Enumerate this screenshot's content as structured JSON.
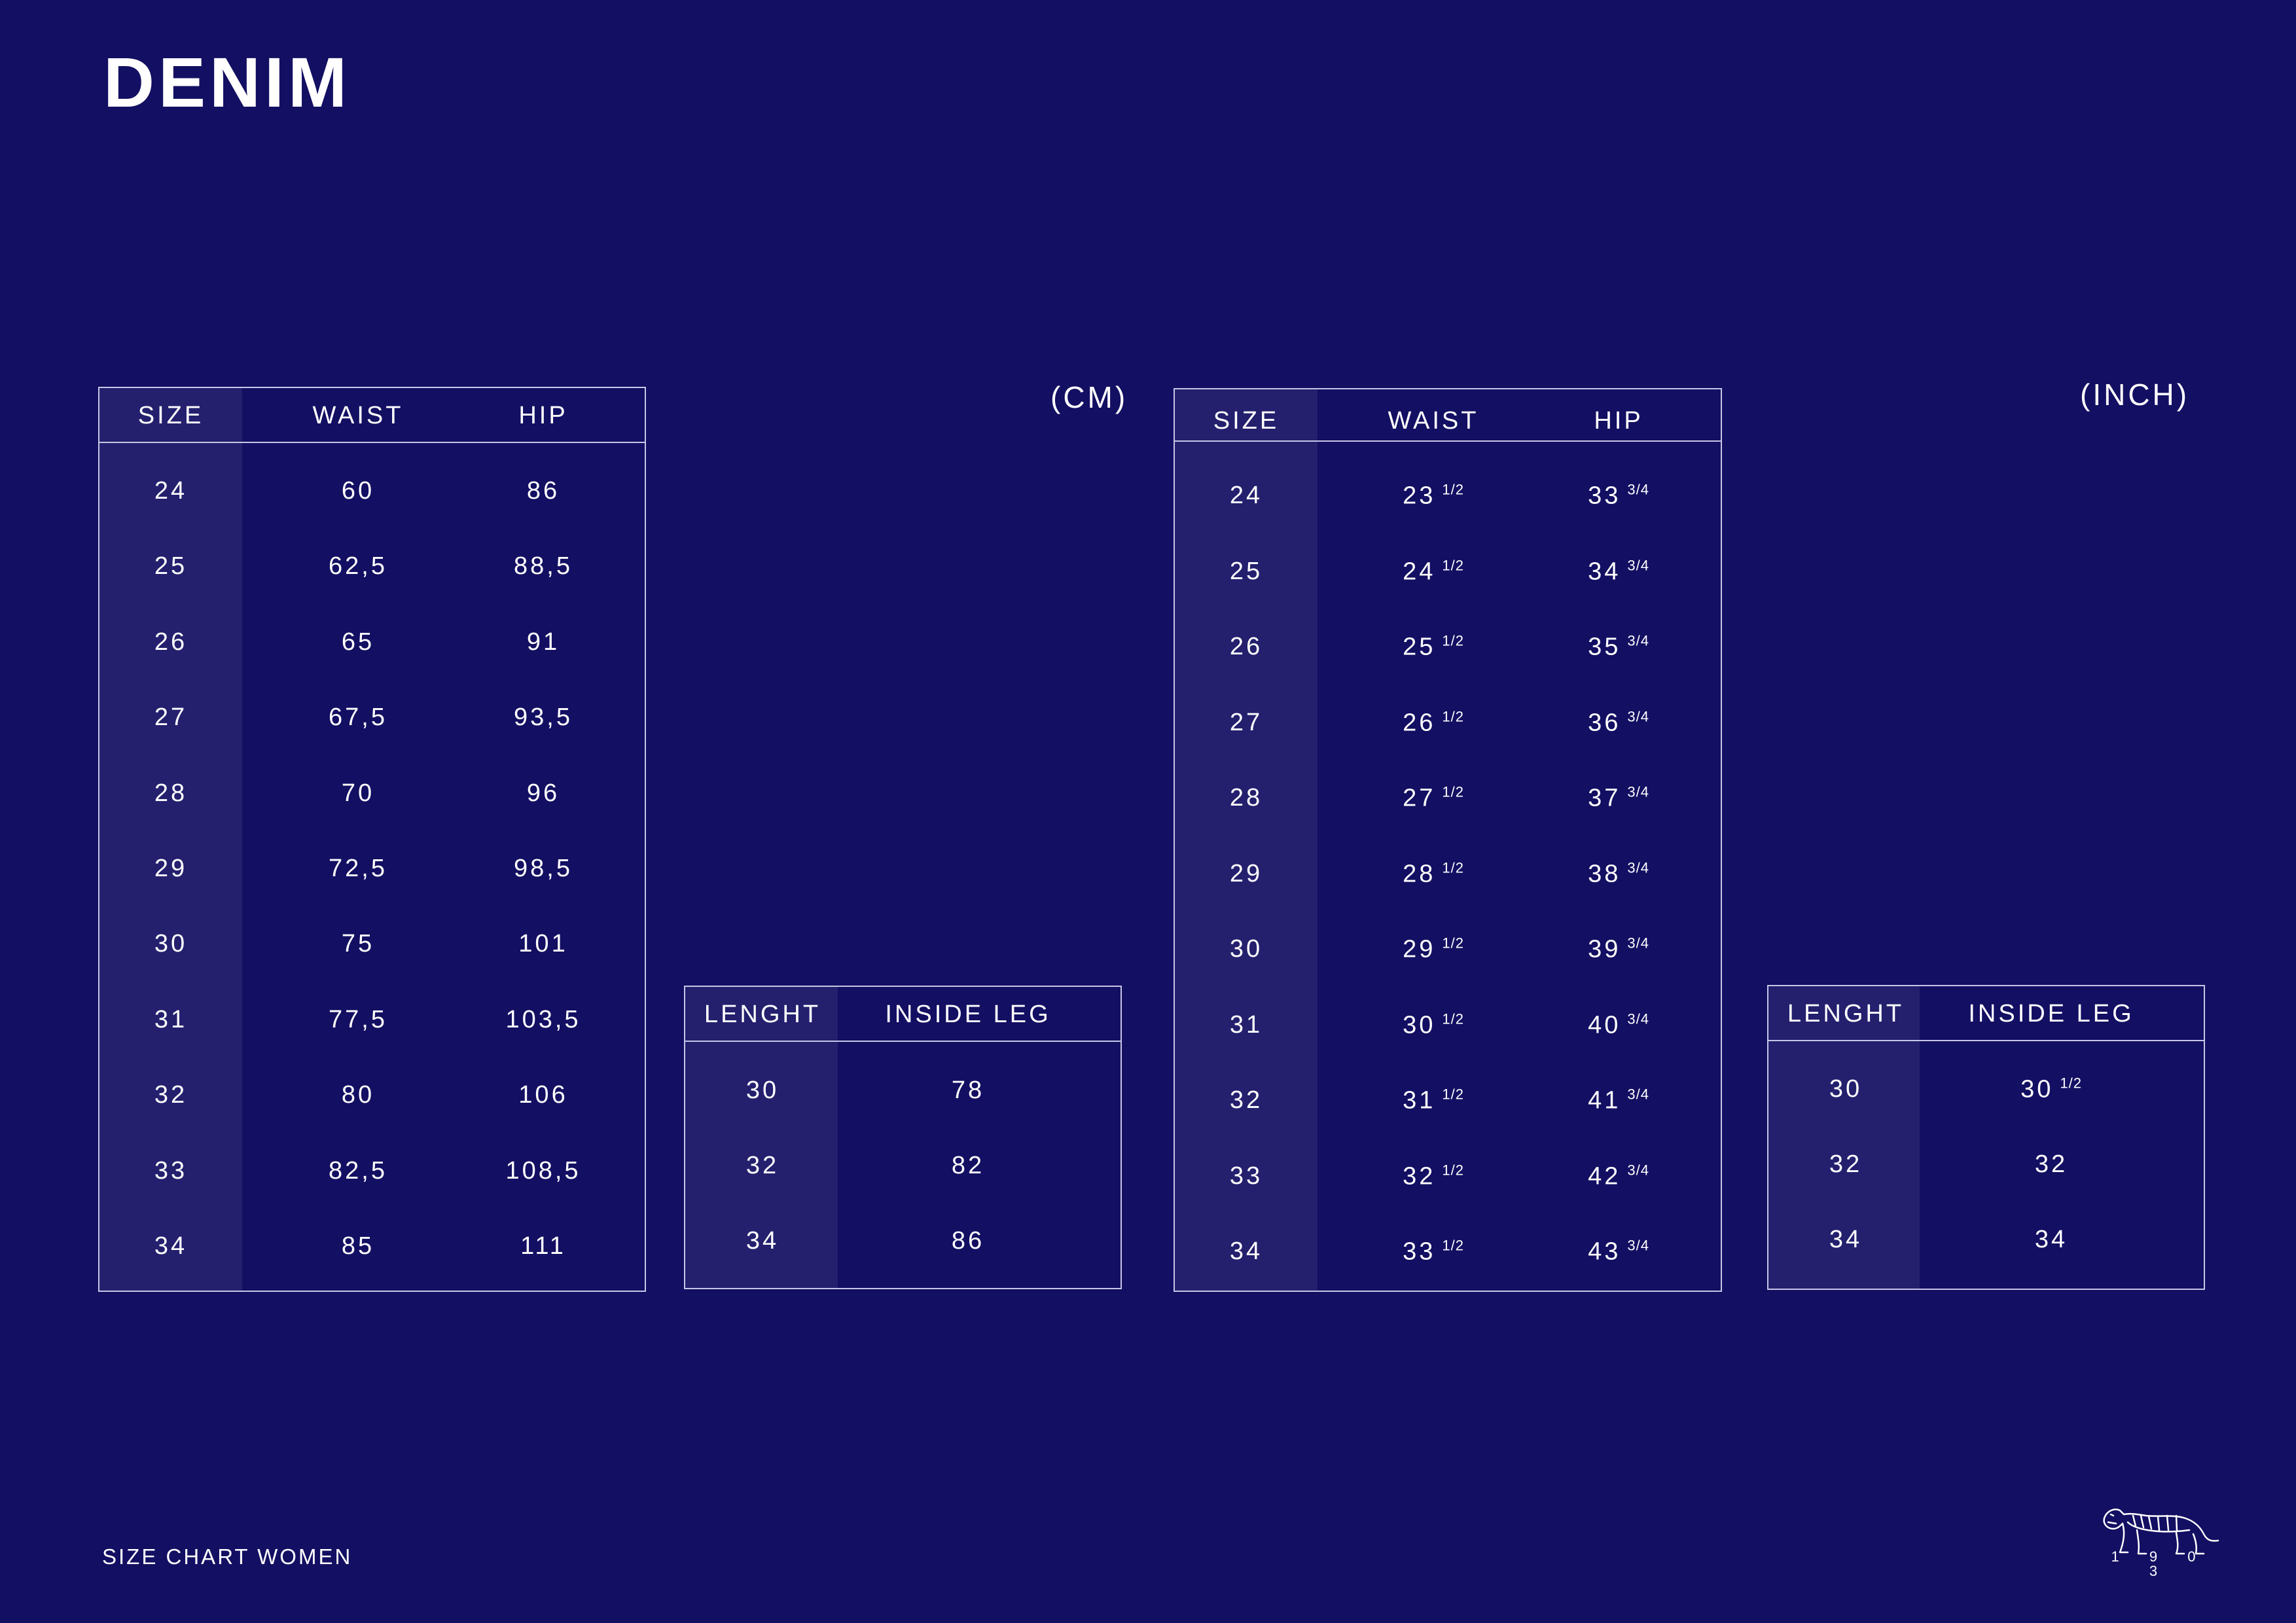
{
  "title": "DENIM",
  "units": {
    "cm": "(CM)",
    "inch": "(INCH)"
  },
  "footer": "SIZE CHART WOMEN",
  "logo_year": "1 9 0 3",
  "cm_main": {
    "headers": [
      "SIZE",
      "WAIST",
      "HIP"
    ],
    "rows": [
      [
        "24",
        "60",
        "86"
      ],
      [
        "25",
        "62,5",
        "88,5"
      ],
      [
        "26",
        "65",
        "91"
      ],
      [
        "27",
        "67,5",
        "93,5"
      ],
      [
        "28",
        "70",
        "96"
      ],
      [
        "29",
        "72,5",
        "98,5"
      ],
      [
        "30",
        "75",
        "101"
      ],
      [
        "31",
        "77,5",
        "103,5"
      ],
      [
        "32",
        "80",
        "106"
      ],
      [
        "33",
        "82,5",
        "108,5"
      ],
      [
        "34",
        "85",
        "111"
      ]
    ]
  },
  "cm_length": {
    "headers": [
      "LENGHT",
      "INSIDE LEG"
    ],
    "rows": [
      [
        "30",
        "78"
      ],
      [
        "32",
        "82"
      ],
      [
        "34",
        "86"
      ]
    ]
  },
  "inch_main": {
    "headers": [
      "SIZE",
      "WAIST",
      "HIP"
    ],
    "rows": [
      [
        [
          "24"
        ],
        [
          "23",
          "1/2"
        ],
        [
          "33",
          "3/4"
        ]
      ],
      [
        [
          "25"
        ],
        [
          "24",
          "1/2"
        ],
        [
          "34",
          "3/4"
        ]
      ],
      [
        [
          "26"
        ],
        [
          "25",
          "1/2"
        ],
        [
          "35",
          "3/4"
        ]
      ],
      [
        [
          "27"
        ],
        [
          "26",
          "1/2"
        ],
        [
          "36",
          "3/4"
        ]
      ],
      [
        [
          "28"
        ],
        [
          "27",
          "1/2"
        ],
        [
          "37",
          "3/4"
        ]
      ],
      [
        [
          "29"
        ],
        [
          "28",
          "1/2"
        ],
        [
          "38",
          "3/4"
        ]
      ],
      [
        [
          "30"
        ],
        [
          "29",
          "1/2"
        ],
        [
          "39",
          "3/4"
        ]
      ],
      [
        [
          "31"
        ],
        [
          "30",
          "1/2"
        ],
        [
          "40",
          "3/4"
        ]
      ],
      [
        [
          "32"
        ],
        [
          "31",
          "1/2"
        ],
        [
          "41",
          "3/4"
        ]
      ],
      [
        [
          "33"
        ],
        [
          "32",
          "1/2"
        ],
        [
          "42",
          "3/4"
        ]
      ],
      [
        [
          "34"
        ],
        [
          "33",
          "1/2"
        ],
        [
          "43",
          "3/4"
        ]
      ]
    ]
  },
  "inch_length": {
    "headers": [
      "LENGHT",
      "INSIDE LEG"
    ],
    "rows": [
      [
        [
          "30"
        ],
        [
          "30",
          "1/2"
        ]
      ],
      [
        [
          "32"
        ],
        [
          "32"
        ]
      ],
      [
        [
          "34"
        ],
        [
          "34"
        ]
      ]
    ]
  },
  "colors": {
    "background": "#130f62",
    "shaded_column": "#24206e",
    "border": "#c7c6e6",
    "text": "#ffffff"
  },
  "icons": {
    "logo": "tiger-icon"
  }
}
